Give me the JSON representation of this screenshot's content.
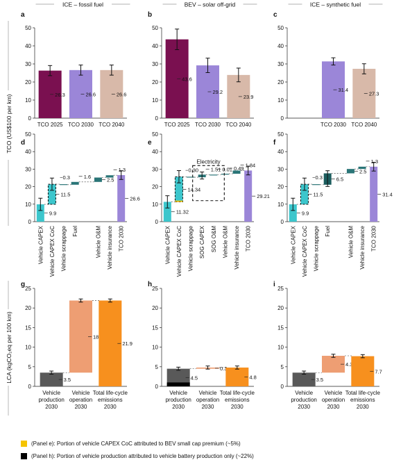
{
  "columns": [
    {
      "letter_top": "a",
      "letter_mid": "d",
      "letter_bot": "g",
      "title": "ICE – fossil fuel"
    },
    {
      "letter_top": "b",
      "letter_mid": "e",
      "letter_bot": "h",
      "title": "BEV – solar off-grid"
    },
    {
      "letter_top": "c",
      "letter_mid": "f",
      "letter_bot": "i",
      "title": "ICE – synthetic fuel"
    }
  ],
  "tco_ylabel": "TCO (US$100 per km)",
  "lca_ylabel": "LCA (kgCO₂eq per 100 km)",
  "colors": {
    "tco2025": "#7a1050",
    "tco2030": "#9b86d8",
    "tco2040": "#d8b9a9",
    "capex": "#3cc6cc",
    "coc": "#3cc6cc",
    "fuel": "#1c5d5e",
    "om": "#2a7577",
    "insurance": "#2a7577",
    "production": "#595959",
    "operation": "#ee9e73",
    "total": "#f7901e",
    "premium": "#f5c400",
    "battery": "#000000"
  },
  "chart_data": [
    {
      "panel": "a",
      "type": "bar",
      "categories": [
        "TCO 2025",
        "TCO 2030",
        "TCO 2040"
      ],
      "values": [
        26.3,
        26.6,
        26.6
      ],
      "labels": [
        "26.3",
        "26.6",
        "26.6"
      ],
      "errors": [
        2.8,
        2.8,
        2.8
      ],
      "ylim": [
        0,
        50
      ]
    },
    {
      "panel": "b",
      "type": "bar",
      "categories": [
        "TCO 2025",
        "TCO 2030",
        "TCO 2040"
      ],
      "values": [
        43.6,
        29.2,
        23.9
      ],
      "labels": [
        "43.6",
        "29.2",
        "23.9"
      ],
      "errors": [
        5.7,
        4,
        3.8
      ],
      "ylim": [
        0,
        50
      ]
    },
    {
      "panel": "c",
      "type": "bar",
      "categories": [
        "",
        "TCO 2030",
        "TCO 2040"
      ],
      "values": [
        null,
        31.4,
        27.3
      ],
      "labels": [
        "",
        "31.4",
        "27.3"
      ],
      "errors": [
        0,
        2,
        2.8
      ],
      "ylim": [
        0,
        50
      ]
    },
    {
      "panel": "d",
      "type": "waterfall",
      "ylim": [
        0,
        50
      ],
      "items": [
        {
          "name": "Vehicle CAPEX",
          "value": 9.9,
          "label": "9.9"
        },
        {
          "name": "Vehicle CAPEX CoC",
          "value": 11.5,
          "label": "11.5"
        },
        {
          "name": "Vehicle scrappage",
          "value": -0.3,
          "label": "−0.3"
        },
        {
          "name": "Fuel",
          "value": 1.6,
          "label": "1.6"
        },
        {
          "name": "",
          "value": null,
          "label": ""
        },
        {
          "name": "Vehicle O&M",
          "value": 2.5,
          "label": "2.5"
        },
        {
          "name": "Vehicle insurance",
          "value": 1.3,
          "label": "1.3"
        },
        {
          "name": "TCO 2030",
          "value": 26.6,
          "label": "26.6",
          "total": true
        }
      ]
    },
    {
      "panel": "e",
      "type": "waterfall",
      "ylim": [
        0,
        50
      ],
      "box_label": "Electricity",
      "items": [
        {
          "name": "Vehicle CAPEX",
          "value": 11.32,
          "label": "11.32"
        },
        {
          "name": "Vehicle CAPEX CoC",
          "value": 14.34,
          "label": "14.34"
        },
        {
          "name": "Vehicle scrappage",
          "value": -0.3,
          "label": "−0.30"
        },
        {
          "name": "SOG CAPEX",
          "value": 1.51,
          "label": "1.51"
        },
        {
          "name": "SOG O&M",
          "value": 0.01,
          "label": "0.01"
        },
        {
          "name": "Vehicle O&M",
          "value": 0.49,
          "label": "0.49"
        },
        {
          "name": "Vehicle insurance",
          "value": 1.84,
          "label": "1.84"
        },
        {
          "name": "TCO 2030",
          "value": 29.21,
          "label": "29.21",
          "total": true
        }
      ]
    },
    {
      "panel": "f",
      "type": "waterfall",
      "ylim": [
        0,
        50
      ],
      "items": [
        {
          "name": "Vehicle CAPEX",
          "value": 9.9,
          "label": "9.9"
        },
        {
          "name": "Vehicle CAPEX CoC",
          "value": 11.5,
          "label": "11.5"
        },
        {
          "name": "Vehicle scrappage",
          "value": -0.3,
          "label": "−0.3"
        },
        {
          "name": "Fuel",
          "value": 6.5,
          "label": "6.5"
        },
        {
          "name": "",
          "value": null,
          "label": ""
        },
        {
          "name": "Vehicle O&M",
          "value": 2.5,
          "label": "2.5"
        },
        {
          "name": "Vehicle insurance",
          "value": 1.3,
          "label": "1.3"
        },
        {
          "name": "TCO 2030",
          "value": 31.4,
          "label": "31.4",
          "total": true
        }
      ]
    },
    {
      "panel": "g",
      "type": "waterfall",
      "ylim": [
        0,
        25
      ],
      "items": [
        {
          "name": [
            "Vehicle",
            "production",
            "2030"
          ],
          "value": 3.5,
          "label": "3.5"
        },
        {
          "name": [
            "Vehicle",
            "operation",
            "2030"
          ],
          "value": 18.4,
          "label": "18.4"
        },
        {
          "name": [
            "Total life-cycle",
            "emissions",
            "2030"
          ],
          "value": 21.9,
          "label": "21.9",
          "total": true
        }
      ]
    },
    {
      "panel": "h",
      "type": "waterfall",
      "ylim": [
        0,
        25
      ],
      "items": [
        {
          "name": [
            "Vehicle",
            "production",
            "2030"
          ],
          "value": 4.5,
          "label": "4.5",
          "battery": 1.0
        },
        {
          "name": [
            "Vehicle",
            "operation",
            "2030"
          ],
          "value": 0.3,
          "label": "0.3"
        },
        {
          "name": [
            "Total life-cycle",
            "emissions",
            "2030"
          ],
          "value": 4.8,
          "label": "4.8",
          "total": true
        }
      ]
    },
    {
      "panel": "i",
      "type": "waterfall",
      "ylim": [
        0,
        25
      ],
      "items": [
        {
          "name": [
            "Vehicle",
            "production",
            "2030"
          ],
          "value": 3.5,
          "label": "3.5"
        },
        {
          "name": [
            "Vehicle",
            "operation",
            "2030"
          ],
          "value": 4.3,
          "label": "4.3"
        },
        {
          "name": [
            "Total life-cycle",
            "emissions",
            "2030"
          ],
          "value": 7.7,
          "label": "7.7",
          "total": true
        }
      ]
    }
  ],
  "legend": [
    {
      "key": "premium",
      "text": "(Panel e): Portion of vehicle CAPEX CoC attributed to BEV small cap premium (~5%)"
    },
    {
      "key": "battery",
      "text": "(Panel h): Portion of vehicle production attributed to vehicle battery production only (~22%)"
    }
  ]
}
